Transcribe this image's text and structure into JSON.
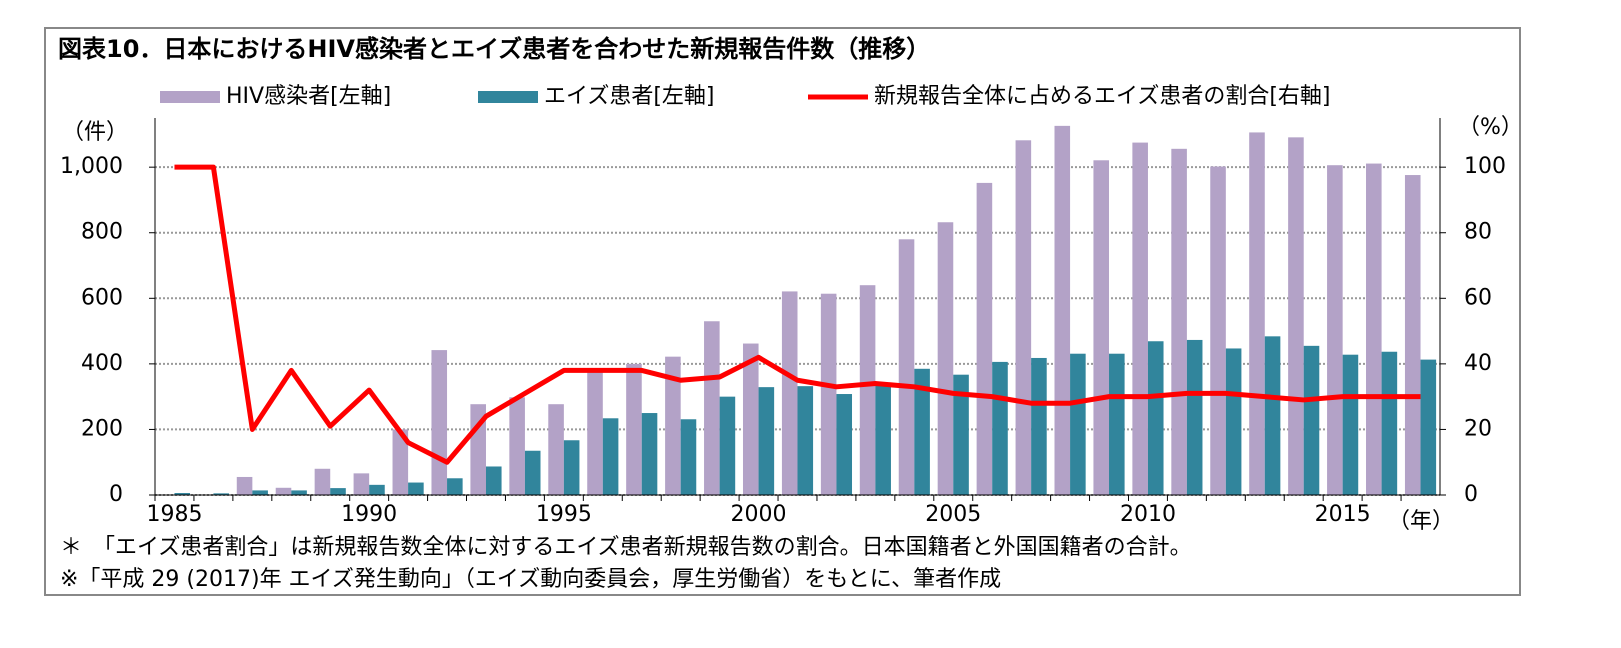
{
  "chart_data": {
    "type": "bar-line",
    "title": "図表10．日本におけるHIV感染者とエイズ患者を合わせた新規報告件数（推移）",
    "y_unit_label": "（件）",
    "y2_unit_label": "（%）",
    "x_unit_label": "（年）",
    "categories": [
      "1985",
      null,
      null,
      null,
      null,
      "1990",
      null,
      null,
      null,
      null,
      "1995",
      null,
      null,
      null,
      null,
      "2000",
      null,
      null,
      null,
      null,
      "2005",
      null,
      null,
      null,
      null,
      "2010",
      null,
      null,
      null,
      null,
      "2015",
      null,
      null
    ],
    "series": [
      {
        "name": "HIV感染者[左軸]",
        "color": "#b3a2c7",
        "kind": "bar",
        "values": [
          0,
          0,
          55,
          22,
          80,
          66,
          200,
          442,
          277,
          298,
          277,
          376,
          400,
          422,
          530,
          462,
          621,
          614,
          640,
          780,
          832,
          952,
          1082,
          1126,
          1021,
          1075,
          1056,
          1002,
          1106,
          1091,
          1006,
          1011,
          976
        ]
      },
      {
        "name": "エイズ患者[左軸]",
        "color": "#31859c",
        "kind": "bar",
        "values": [
          6,
          5,
          14,
          14,
          21,
          31,
          38,
          51,
          87,
          135,
          167,
          234,
          250,
          231,
          300,
          329,
          332,
          308,
          336,
          385,
          367,
          406,
          418,
          431,
          431,
          469,
          473,
          447,
          484,
          455,
          428,
          437,
          413
        ]
      },
      {
        "name": "新規報告全体に占めるエイズ患者の割合[右軸]",
        "color": "#ff0000",
        "kind": "line",
        "axis": "y2",
        "values": [
          100,
          100,
          20,
          38,
          21,
          32,
          16,
          10,
          24,
          31,
          38,
          38,
          38,
          35,
          36,
          42,
          35,
          33,
          34,
          33,
          31,
          30,
          28,
          28,
          30,
          30,
          31,
          31,
          30,
          29,
          30,
          30,
          30
        ]
      }
    ],
    "ylim": [
      0,
      1150
    ],
    "yticks": [
      0,
      200,
      400,
      600,
      800,
      {
        "value": 1000,
        "label": "1,000"
      }
    ],
    "y2lim": [
      0,
      115
    ],
    "y2ticks": [
      0,
      20,
      40,
      60,
      80,
      100
    ],
    "grid": true,
    "notes": [
      "＊　「エイズ患者割合」は新規報告数全体に対するエイズ患者新規報告数の割合。日本国籍者と外国国籍者の合計。",
      "※「平成 29 (2017)年 エイズ発生動向」（エイズ動向委員会，厚生労働省）をもとに、筆者作成"
    ]
  }
}
